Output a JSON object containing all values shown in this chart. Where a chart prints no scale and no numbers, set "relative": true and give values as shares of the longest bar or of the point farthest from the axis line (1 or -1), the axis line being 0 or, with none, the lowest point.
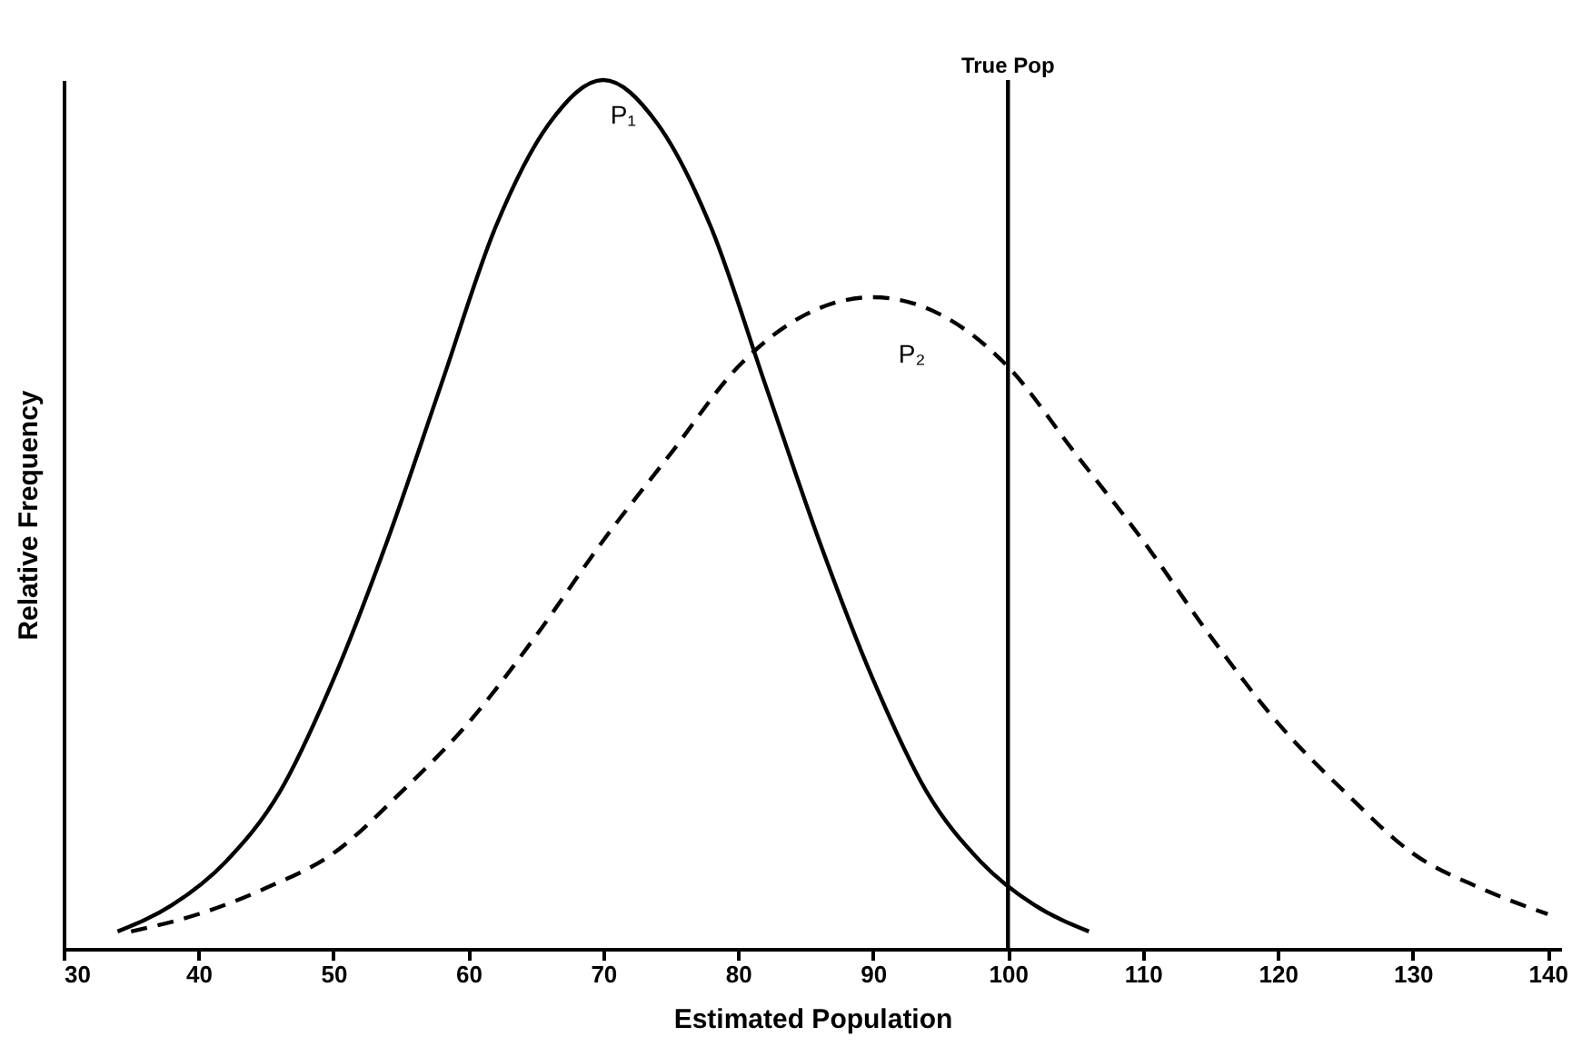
{
  "chart_data": {
    "type": "line",
    "xlabel": "Estimated Population",
    "ylabel": "Relative Frequency",
    "relative": true,
    "xlim": [
      30,
      141
    ],
    "xticks": [
      30,
      40,
      50,
      60,
      70,
      80,
      90,
      100,
      110,
      120,
      130,
      140
    ],
    "marker": "none",
    "series": [
      {
        "name": "P₁",
        "color": "#000000",
        "line_style": "solid",
        "x": [
          34,
          38,
          42,
          46,
          50,
          54,
          58,
          62,
          66,
          70,
          74,
          78,
          82,
          86,
          90,
          94,
          98,
          102,
          106
        ],
        "values": [
          0.02,
          0.05,
          0.1,
          0.18,
          0.31,
          0.47,
          0.65,
          0.83,
          0.95,
          1,
          0.95,
          0.83,
          0.65,
          0.47,
          0.31,
          0.18,
          0.1,
          0.05,
          0.02
        ]
      },
      {
        "name": "P₂",
        "color": "#000000",
        "line_style": "dashed",
        "x": [
          35,
          40,
          45,
          50,
          55,
          60,
          65,
          70,
          75,
          80,
          85,
          90,
          95,
          100,
          105,
          110,
          115,
          120,
          125,
          130,
          135,
          140
        ],
        "values": [
          0.02,
          0.04,
          0.07,
          0.11,
          0.18,
          0.26,
          0.36,
          0.47,
          0.57,
          0.67,
          0.73,
          0.75,
          0.73,
          0.67,
          0.57,
          0.47,
          0.36,
          0.26,
          0.18,
          0.11,
          0.07,
          0.04
        ]
      }
    ],
    "ref_lines": [
      {
        "axis": "x",
        "value": 100,
        "label": "True Pop",
        "color": "#000000"
      }
    ]
  }
}
